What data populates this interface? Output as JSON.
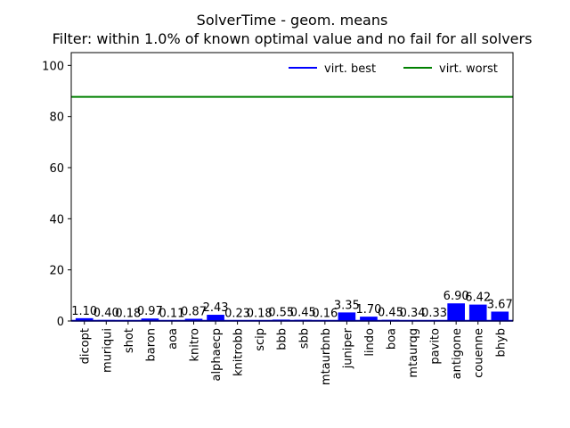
{
  "chart_data": {
    "type": "bar",
    "title": "SolverTime - geom. means",
    "subtitle": "Filter: within 1.0% of known optimal value and no fail for all solvers",
    "xlabel": "",
    "ylabel": "",
    "ylim": [
      0,
      105
    ],
    "yticks": [
      0,
      20,
      40,
      60,
      80,
      100
    ],
    "categories": [
      "dicopt",
      "muriqui",
      "shot",
      "baron",
      "aoa",
      "knitro",
      "alphaecp",
      "knitrobb",
      "scip",
      "bbb",
      "sbb",
      "mtaurbnb",
      "juniper",
      "lindo",
      "boa",
      "mtaurqg",
      "pavito",
      "antigone",
      "couenne",
      "bhyb"
    ],
    "values": [
      1.1,
      0.4,
      0.18,
      0.97,
      0.11,
      0.87,
      2.43,
      0.23,
      0.18,
      0.55,
      0.45,
      0.16,
      3.35,
      1.7,
      0.45,
      0.34,
      0.33,
      6.9,
      6.42,
      3.67
    ],
    "value_labels": [
      "1.10",
      "0.40",
      "0.18",
      "0.97",
      "0.11",
      "0.87",
      "2.43",
      "0.23",
      "0.18",
      "0.55",
      "0.45",
      "0.16",
      "3.35",
      "1.70",
      "0.45",
      "0.34",
      "0.33",
      "6.90",
      "6.42",
      "3.67"
    ],
    "bar_color": "#0000ff",
    "reference_lines": [
      {
        "name": "virt. best",
        "value": 0.1,
        "color": "#0000ff"
      },
      {
        "name": "virt. worst",
        "value": 87.7,
        "color": "#008000"
      }
    ],
    "legend": {
      "position": "top-right",
      "entries": [
        "virt. best",
        "virt. worst"
      ]
    },
    "grid": false
  }
}
